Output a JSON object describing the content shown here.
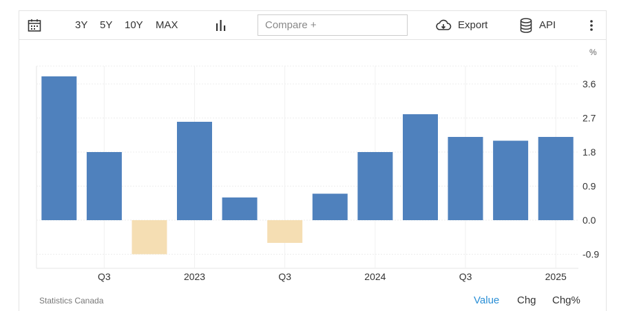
{
  "toolbar": {
    "ranges": [
      "3Y",
      "5Y",
      "10Y",
      "MAX"
    ],
    "compare_placeholder": "Compare +",
    "export_label": "Export",
    "api_label": "API"
  },
  "chart_data": {
    "type": "bar",
    "unit_label": "%",
    "x_tick_labels": [
      "Q3",
      "2023",
      "Q3",
      "2024",
      "Q3",
      "2025"
    ],
    "categories": [
      "2022 Q2",
      "2022 Q3",
      "2022 Q4",
      "2023 Q1",
      "2023 Q2",
      "2023 Q3",
      "2023 Q4",
      "2024 Q1",
      "2024 Q2",
      "2024 Q3",
      "2024 Q4",
      "2025 Q1"
    ],
    "values": [
      3.8,
      1.8,
      -0.9,
      2.6,
      0.6,
      -0.6,
      0.7,
      1.8,
      2.8,
      2.2,
      2.1,
      2.2
    ],
    "y_ticks": [
      3.6,
      2.7,
      1.8,
      0.9,
      0.0,
      -0.9
    ],
    "ylim": [
      -1.0,
      4.2
    ],
    "grid": true,
    "colors": {
      "positive": "#4f81bd",
      "negative": "#f5deb3"
    }
  },
  "footer": {
    "source": "Statistics Canada",
    "modes": [
      "Value",
      "Chg",
      "Chg%"
    ],
    "active_mode": "Value",
    "active_color": "#2a8fd6"
  }
}
